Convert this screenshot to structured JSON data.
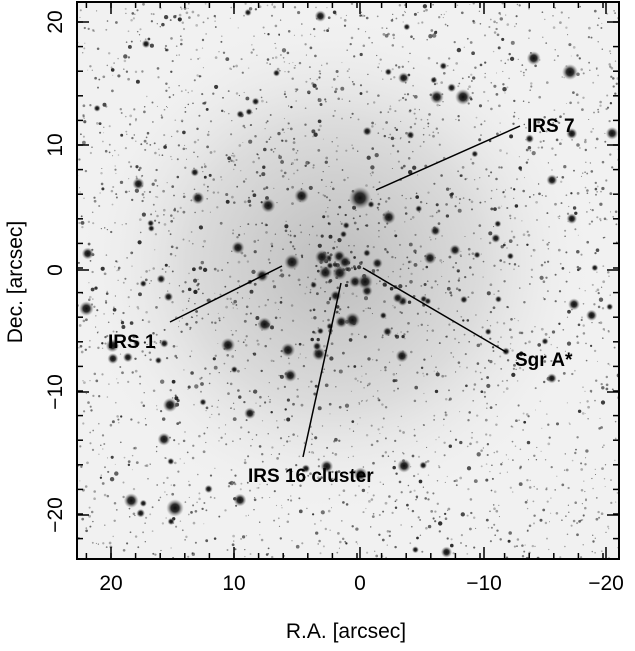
{
  "figure": {
    "xlabel": "R.A. [arcsec]",
    "ylabel": "Dec. [arcsec]",
    "xlim": [
      23,
      -20.5
    ],
    "ylim": [
      -23,
      20.5
    ],
    "x_ticks": [
      "20",
      "10",
      "0",
      "−10",
      "−20"
    ],
    "y_ticks": [
      "20",
      "10",
      "0",
      "−10",
      "−20"
    ],
    "colormap": "inverted grayscale (bright = dark)",
    "background_color": "#f2f2f2",
    "star_color": "#1a1a1a"
  },
  "annotations": [
    {
      "label": "IRS 7"
    },
    {
      "label": "IRS 1"
    },
    {
      "label": "Sgr A*"
    },
    {
      "label": "IRS 16 cluster"
    }
  ]
}
